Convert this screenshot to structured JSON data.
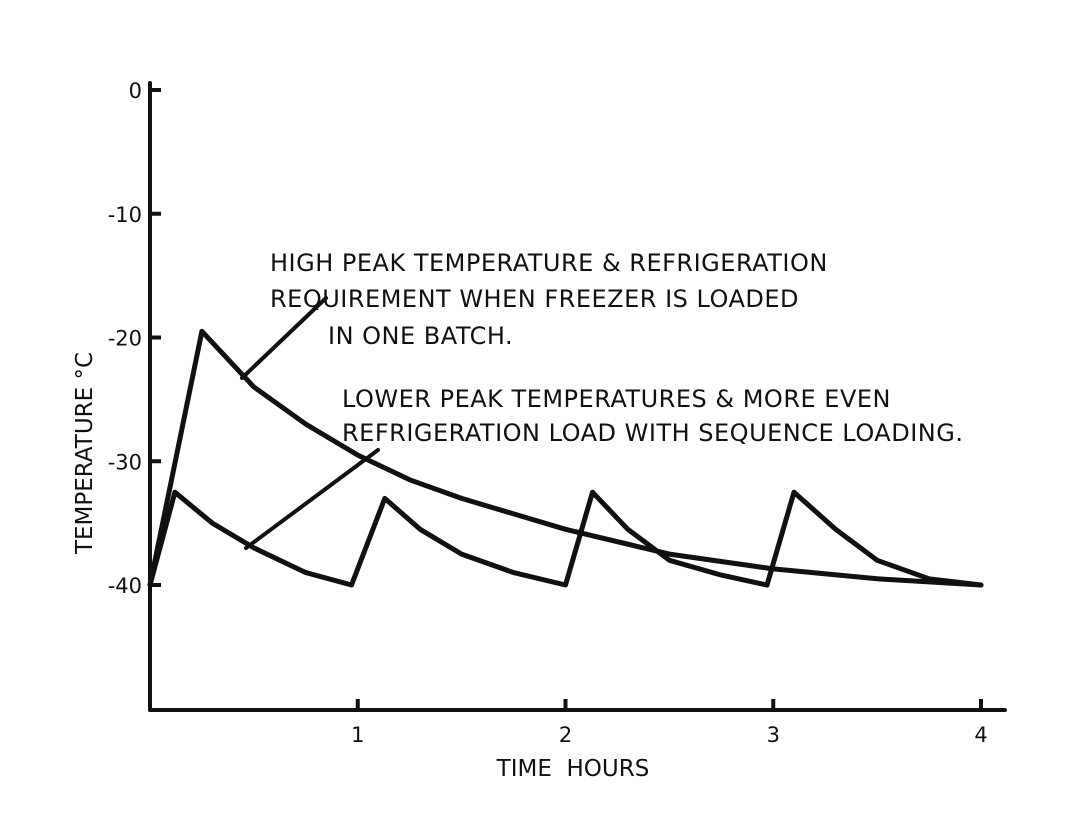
{
  "chart_data": {
    "type": "line",
    "title": "",
    "xlabel": "TIME  HOURS",
    "ylabel": "TEMPERATURE °C",
    "xlim": [
      0,
      4.1
    ],
    "ylim": [
      -50,
      0
    ],
    "x_ticks": [
      1,
      2,
      3,
      4
    ],
    "x_tick_labels": [
      "1",
      "2",
      "3",
      "4"
    ],
    "y_ticks": [
      0,
      -10,
      -20,
      -30,
      -40
    ],
    "y_tick_labels": [
      "0",
      "-10",
      "-20",
      "-30",
      "-40"
    ],
    "grid": false,
    "series": [
      {
        "name": "one-batch loading",
        "x": [
          0,
          0.25,
          0.5,
          0.75,
          1.0,
          1.25,
          1.5,
          2.0,
          2.5,
          3.0,
          3.5,
          4.0
        ],
        "y": [
          -40,
          -19.5,
          -24,
          -27,
          -29.5,
          -31.5,
          -33,
          -35.5,
          -37.5,
          -38.7,
          -39.5,
          -40
        ]
      },
      {
        "name": "sequence loading",
        "x": [
          0,
          0.12,
          0.3,
          0.5,
          0.75,
          0.97,
          1.13,
          1.3,
          1.5,
          1.75,
          2.0,
          2.13,
          2.3,
          2.5,
          2.75,
          2.97,
          3.1,
          3.3,
          3.5,
          3.75,
          4.0
        ],
        "y": [
          -40,
          -32.5,
          -35,
          -37,
          -39,
          -40,
          -33,
          -35.5,
          -37.5,
          -39,
          -40,
          -32.5,
          -35.5,
          -38,
          -39.2,
          -40,
          -32.5,
          -35.5,
          -38,
          -39.5,
          -40
        ]
      }
    ],
    "annotations": [
      {
        "lines": [
          "HIGH PEAK TEMPERATURE & REFRIGERATION",
          "REQUIREMENT WHEN FREEZER IS LOADED",
          "IN ONE BATCH."
        ],
        "points_to": "one-batch loading"
      },
      {
        "lines": [
          "LOWER PEAK TEMPERATURES & MORE EVEN",
          "REFRIGERATION LOAD WITH SEQUENCE LOADING."
        ],
        "points_to": "sequence loading"
      }
    ]
  }
}
